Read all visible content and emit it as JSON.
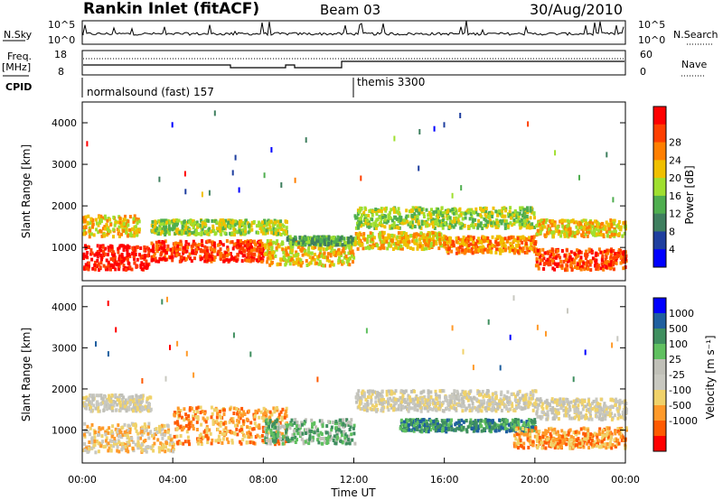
{
  "header": {
    "title": "Rankin Inlet (fitACF)",
    "beam": "Beam 03",
    "date": "30/Aug/2010"
  },
  "panels": {
    "nsky": {
      "label": "N.Sky",
      "tick_top": "10^5",
      "tick_bottom": "10^0",
      "right_label": "N.Search",
      "right_tick_top": "10^5",
      "right_tick_bottom": "10^0"
    },
    "freq": {
      "label_line1": "Freq.",
      "label_line2": "[MHz]",
      "tick_top": "18",
      "tick_bottom": "8",
      "right_label": "Nave",
      "right_tick_top": "60",
      "right_tick_bottom": "0"
    },
    "cpid": {
      "label": "CPID",
      "mode1": "normalsound (fast) 157",
      "mode2": "themis 3300"
    }
  },
  "colors": {
    "power": [
      "#0000ff",
      "#1f3f9f",
      "#3f7f5f",
      "#4fae4f",
      "#9fdf2f",
      "#f0c000",
      "#ff7f00",
      "#ff3f00",
      "#ff0000"
    ],
    "velocity": [
      "#ff0000",
      "#ff5a00",
      "#ff9a2a",
      "#f0d26a",
      "#c8c8c0",
      "#c0c0b8",
      "#60c060",
      "#3f8f5f",
      "#1f5f9f",
      "#0000ff"
    ]
  },
  "chart_data": [
    {
      "type": "heatmap",
      "name": "Power",
      "ylabel": "Slant Range [km]",
      "xlim": [
        "00:00",
        "24:00"
      ],
      "ylim": [
        200,
        4500
      ],
      "yticks": [
        1000,
        2000,
        3000,
        4000
      ],
      "xticks": [
        "00:00",
        "04:00",
        "08:00",
        "12:00",
        "16:00",
        "20:00",
        "00:00"
      ],
      "colorbar": {
        "label": "Power [dB]",
        "ticks": [
          4,
          8,
          12,
          16,
          20,
          24,
          28
        ]
      },
      "scatter_regions": [
        {
          "t": [
            0,
            3
          ],
          "range": [
            500,
            1100
          ],
          "level": 8
        },
        {
          "t": [
            0,
            2.5
          ],
          "range": [
            1300,
            1800
          ],
          "level": 5
        },
        {
          "t": [
            3,
            8
          ],
          "range": [
            700,
            1200
          ],
          "level": 7
        },
        {
          "t": [
            3,
            9
          ],
          "range": [
            1350,
            1700
          ],
          "level": 4
        },
        {
          "t": [
            8,
            12
          ],
          "range": [
            600,
            1200
          ],
          "level": 5
        },
        {
          "t": [
            9,
            12
          ],
          "range": [
            1100,
            1300
          ],
          "level": 3
        },
        {
          "t": [
            12,
            20
          ],
          "range": [
            1500,
            2000
          ],
          "level": 4
        },
        {
          "t": [
            12,
            16
          ],
          "range": [
            1000,
            1400
          ],
          "level": 5
        },
        {
          "t": [
            16,
            20
          ],
          "range": [
            900,
            1300
          ],
          "level": 6
        },
        {
          "t": [
            20,
            24
          ],
          "range": [
            1300,
            1700
          ],
          "level": 5
        },
        {
          "t": [
            20,
            24
          ],
          "range": [
            500,
            1000
          ],
          "level": 7
        }
      ]
    },
    {
      "type": "heatmap",
      "name": "Velocity",
      "ylabel": "Slant Range [km]",
      "xlabel": "Time UT",
      "xlim": [
        "00:00",
        "24:00"
      ],
      "ylim": [
        200,
        4500
      ],
      "yticks": [
        1000,
        2000,
        3000,
        4000
      ],
      "xticks": [
        "00:00",
        "04:00",
        "08:00",
        "12:00",
        "16:00",
        "20:00",
        "00:00"
      ],
      "colorbar": {
        "label": "Velocity [m s⁻¹]",
        "ticks": [
          "1000",
          "500",
          "100",
          "25",
          "-25",
          "-100",
          "-500",
          "-1000"
        ]
      },
      "scatter_regions": [
        {
          "t": [
            0,
            3
          ],
          "range": [
            1500,
            1900
          ],
          "level": 4
        },
        {
          "t": [
            0,
            4
          ],
          "range": [
            500,
            1200
          ],
          "level": 3
        },
        {
          "t": [
            4,
            9
          ],
          "range": [
            700,
            1600
          ],
          "level": 2
        },
        {
          "t": [
            8,
            12
          ],
          "range": [
            700,
            1300
          ],
          "level": 6
        },
        {
          "t": [
            12,
            20
          ],
          "range": [
            1500,
            2000
          ],
          "level": 4
        },
        {
          "t": [
            14,
            20
          ],
          "range": [
            1000,
            1300
          ],
          "level": 7
        },
        {
          "t": [
            19,
            24
          ],
          "range": [
            600,
            1100
          ],
          "level": 2
        },
        {
          "t": [
            20,
            24
          ],
          "range": [
            1300,
            1800
          ],
          "level": 4
        }
      ]
    }
  ]
}
